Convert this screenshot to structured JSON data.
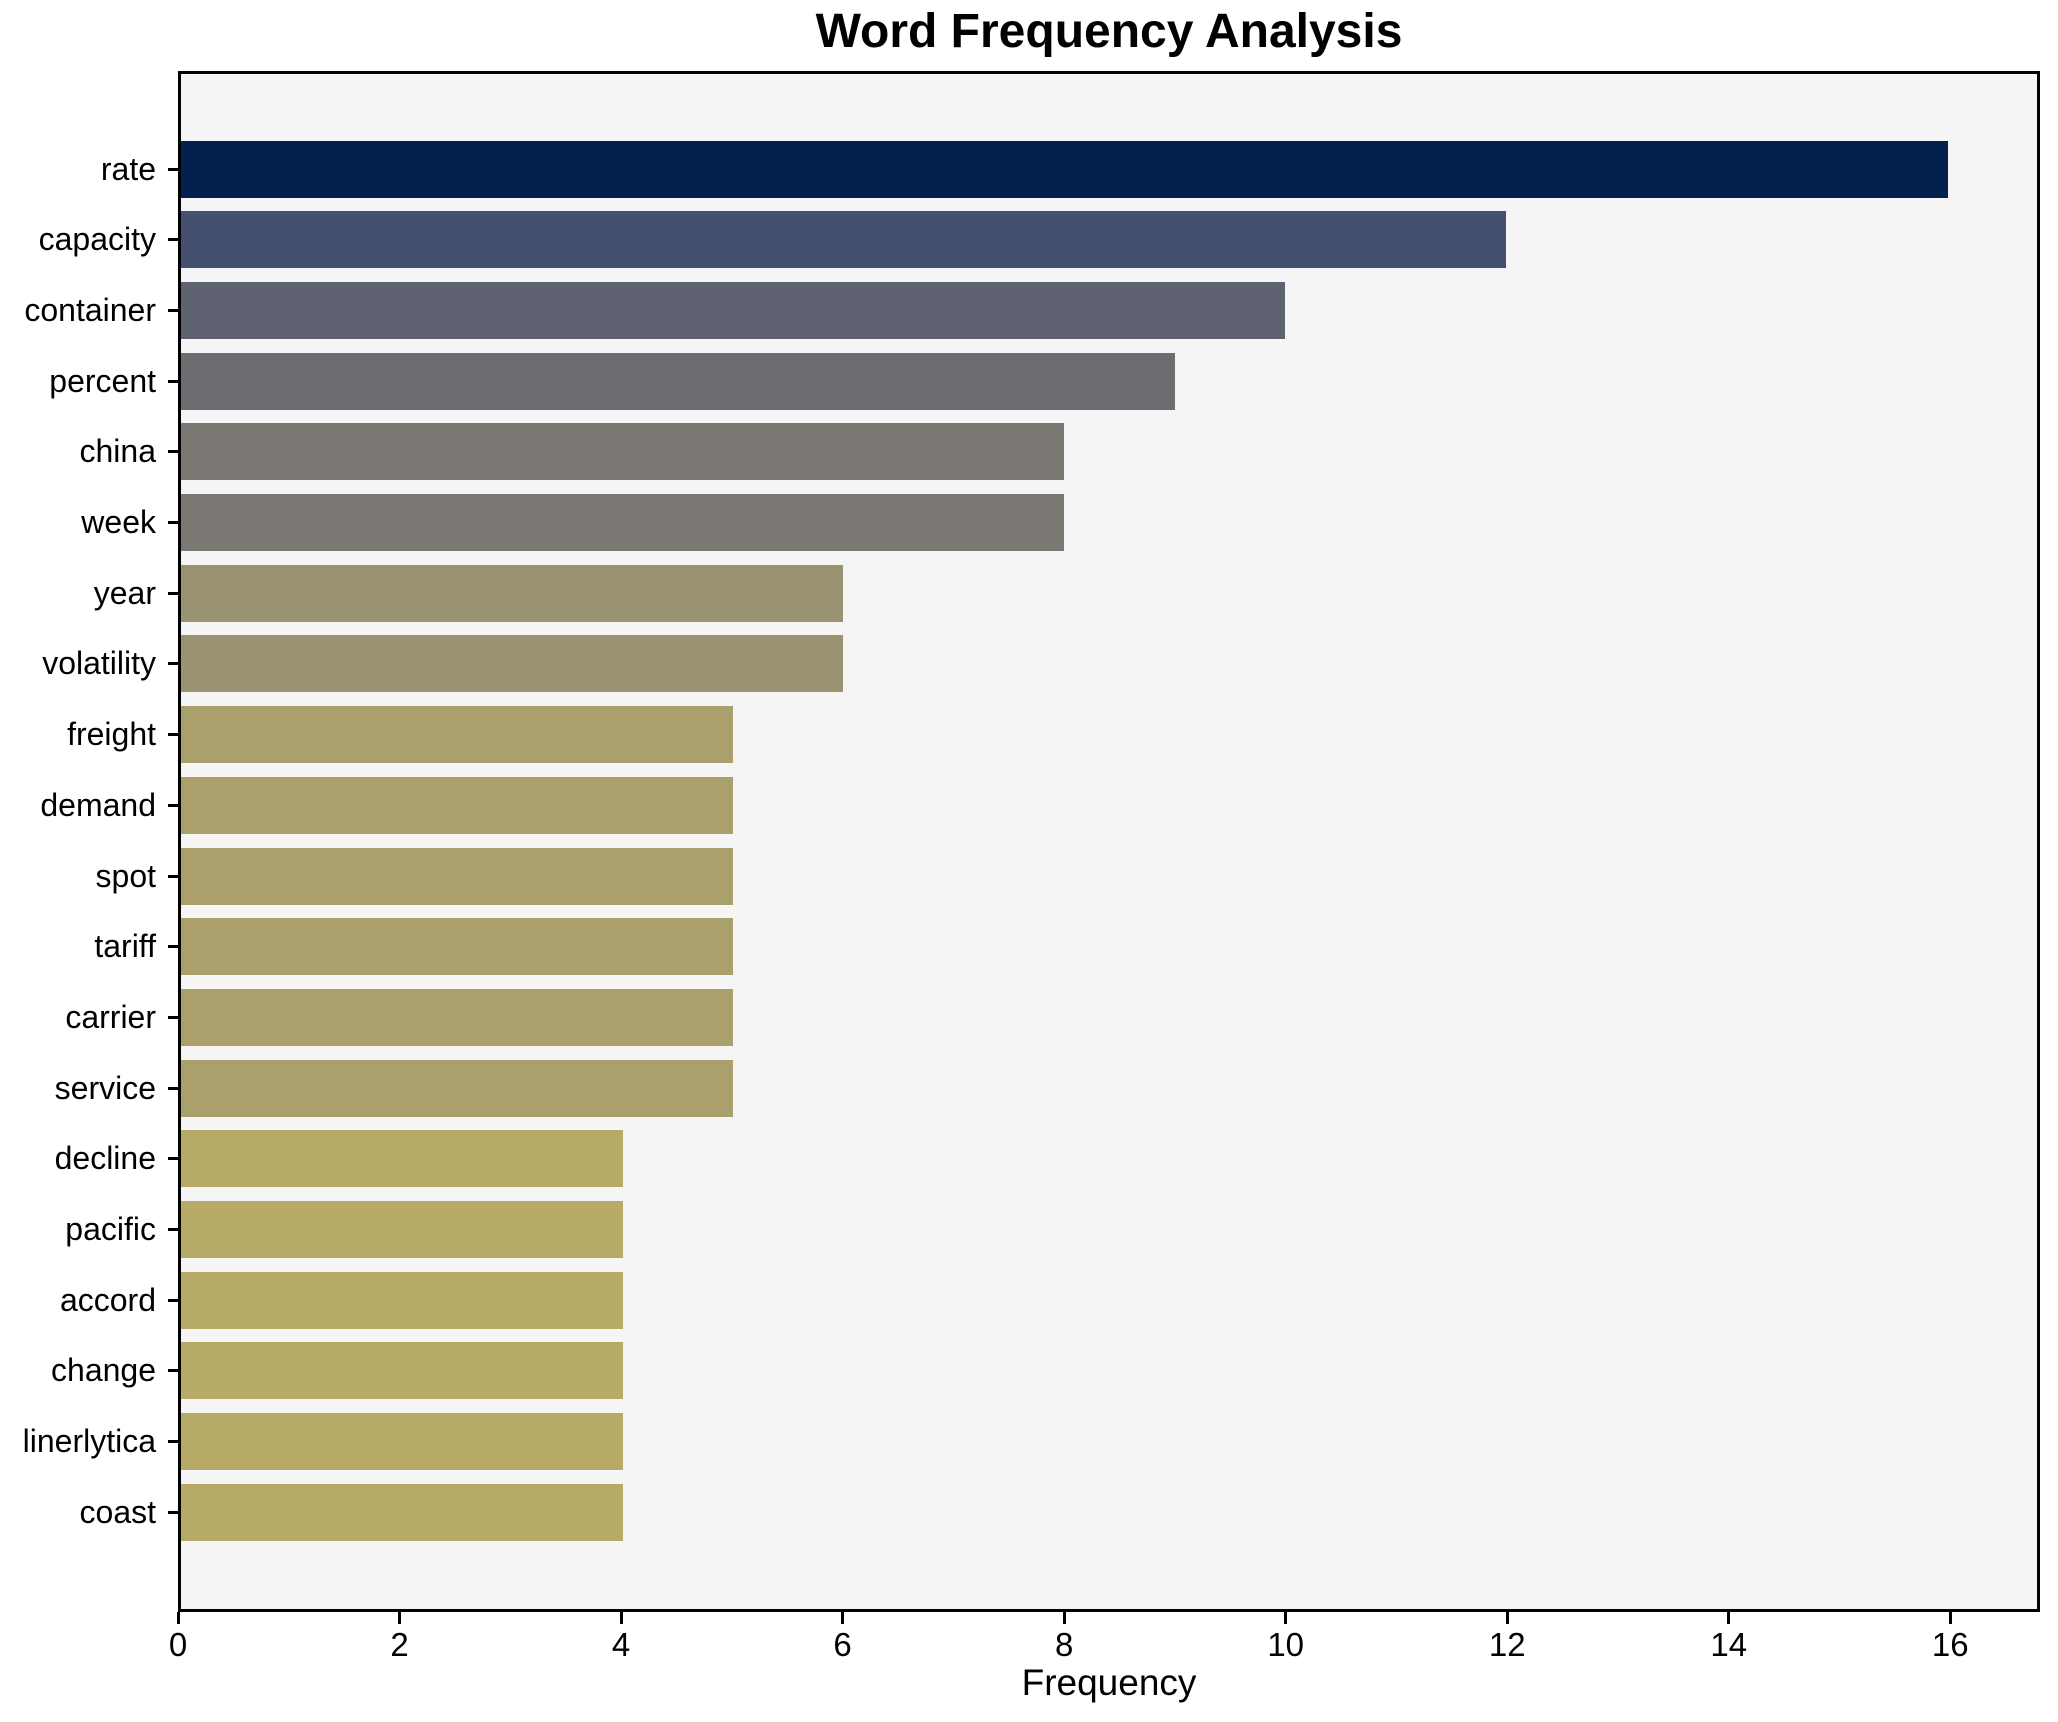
{
  "chart_data": {
    "type": "bar",
    "orientation": "horizontal",
    "title": "Word Frequency Analysis",
    "xlabel": "Frequency",
    "ylabel": "",
    "xlim": [
      0,
      16.81
    ],
    "x_ticks": [
      0,
      2,
      4,
      6,
      8,
      10,
      12,
      14,
      16
    ],
    "grid": false,
    "legend_position": "none",
    "plot_background": "#f6f5f6",
    "page_background": "#ffffff",
    "spine_color": "#000000",
    "categories": [
      "rate",
      "capacity",
      "container",
      "percent",
      "china",
      "week",
      "year",
      "volatility",
      "freight",
      "demand",
      "spot",
      "tariff",
      "carrier",
      "service",
      "decline",
      "pacific",
      "accord",
      "change",
      "linerlytica",
      "coast"
    ],
    "values": [
      16,
      12,
      10,
      9,
      8,
      8,
      6,
      6,
      5,
      5,
      5,
      5,
      5,
      5,
      4,
      4,
      4,
      4,
      4,
      4
    ],
    "bar_colors": [
      "#02214d",
      "#45506e",
      "#5e6271",
      "#6c6d70",
      "#7b7873",
      "#7b7873",
      "#9a9371",
      "#9a9371",
      "#a9a06e",
      "#a9a06e",
      "#a9a06e",
      "#a9a06e",
      "#a9a06e",
      "#a9a06e",
      "#b7aa69",
      "#b7aa69",
      "#b7aa69",
      "#b7aa69",
      "#b7aa69",
      "#b7aa69"
    ]
  }
}
